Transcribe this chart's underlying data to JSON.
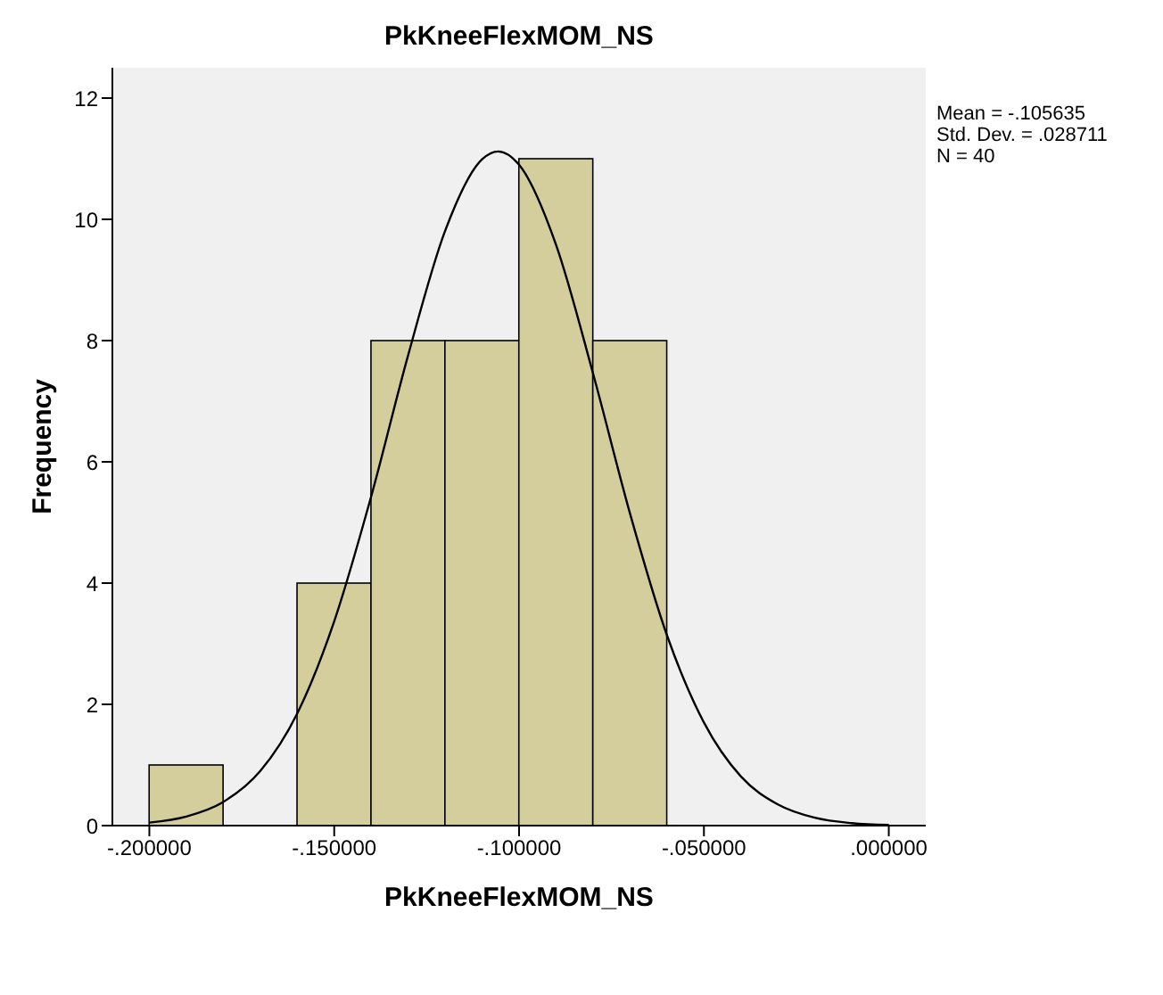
{
  "chart_data": {
    "type": "histogram",
    "title": "PkKneeFlexMOM_NS",
    "xlabel": "PkKneeFlexMOM_NS",
    "ylabel": "Frequency",
    "bins": [
      -0.2,
      -0.18,
      -0.16,
      -0.14,
      -0.12,
      -0.1,
      -0.08,
      -0.06
    ],
    "values": [
      1,
      0,
      4,
      8,
      8,
      11,
      8
    ],
    "color": "#d3ce9c",
    "series": [
      {
        "type": "line",
        "color": "#000000",
        "x": [
          -0.2,
          -0.19,
          -0.18,
          -0.17,
          -0.16,
          -0.15,
          -0.14,
          -0.13,
          -0.12,
          -0.11,
          -0.105635,
          -0.1,
          -0.09,
          -0.08,
          -0.07,
          -0.06,
          -0.05,
          -0.04,
          -0.03,
          -0.02,
          -0.01,
          0
        ],
        "values": [
          0.05,
          0.15,
          0.39,
          0.9,
          1.85,
          3.37,
          5.43,
          7.76,
          9.81,
          10.99,
          11.12,
          10.9,
          9.58,
          7.46,
          5.15,
          3.14,
          1.7,
          0.81,
          0.35,
          0.13,
          0.04,
          0.01
        ]
      }
    ],
    "xlim": [
      -0.21,
      0.01
    ],
    "xticks": [
      {
        "value": -0.2,
        "label": "-.200000"
      },
      {
        "value": -0.15,
        "label": "-.150000"
      },
      {
        "value": -0.1,
        "label": "-.100000"
      },
      {
        "value": -0.05,
        "label": "-.050000"
      },
      {
        "value": 0,
        "label": ".000000"
      }
    ],
    "ylim": [
      0,
      12.5
    ],
    "yticks": [
      0,
      2,
      4,
      6,
      8,
      10,
      12
    ],
    "grid": false,
    "annotations": [
      "Mean = -.105635",
      "Std. Dev. = .028711",
      "N = 40"
    ]
  }
}
